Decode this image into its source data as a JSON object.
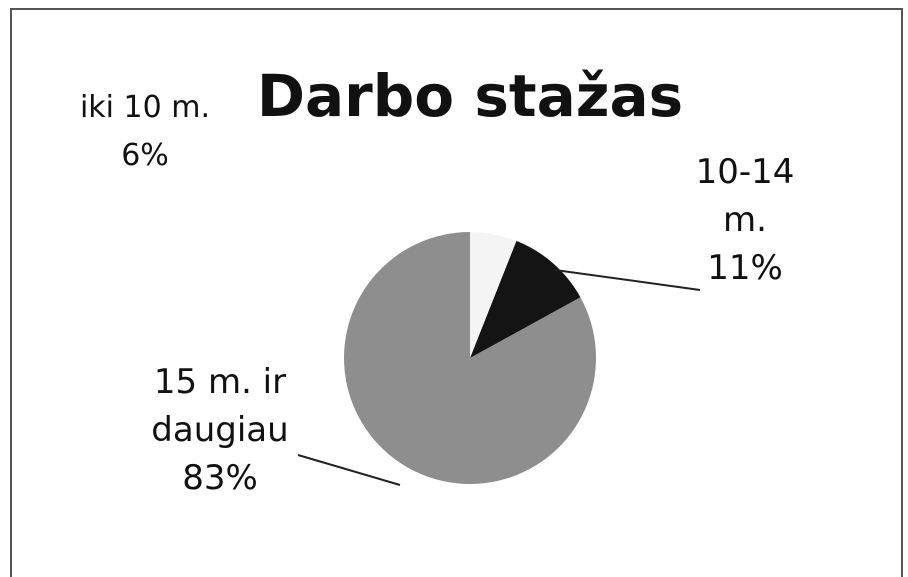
{
  "chart_data": {
    "type": "pie",
    "title": "Darbo stažas",
    "categories": [
      "iki 10 m.",
      "10-14 m.",
      "15 m. ir daugiau"
    ],
    "values": [
      6,
      11,
      83
    ],
    "value_labels": [
      "6%",
      "11%",
      "83%"
    ],
    "colors": [
      "#f4f4f4",
      "#141414",
      "#8e8e8e"
    ]
  }
}
